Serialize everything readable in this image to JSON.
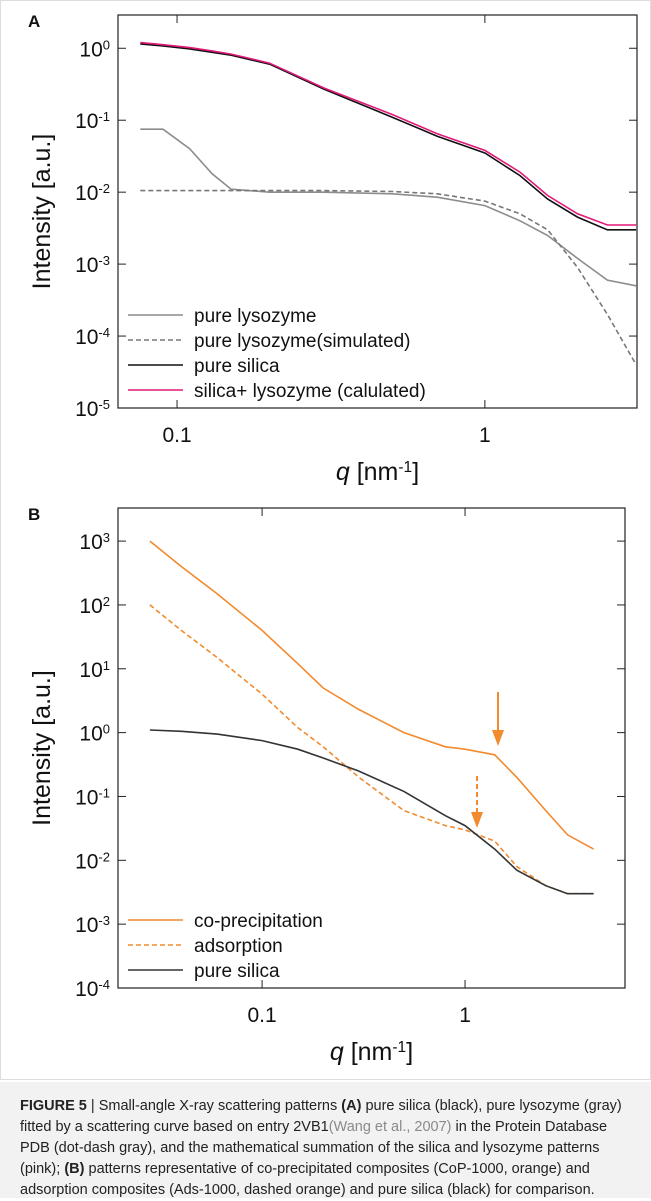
{
  "chart_data": [
    {
      "type": "line",
      "panel_label": "A",
      "x_label": "q [nm^-1]",
      "y_label": "Intensity [a.u.]",
      "log_x": true,
      "log_y": true,
      "xlim": [
        0.0643,
        3.12
      ],
      "ylim": [
        1e-05,
        2.9
      ],
      "xticks": [
        0.1,
        1
      ],
      "yticks": [
        {
          "value": 1e-05,
          "label": "10^-5"
        },
        {
          "value": 0.0001,
          "label": "10^-4"
        },
        {
          "value": 0.001,
          "label": "10^-3"
        },
        {
          "value": 0.01,
          "label": "10^-2"
        },
        {
          "value": 0.1,
          "label": "10^-1"
        },
        {
          "value": 1,
          "label": "10^0"
        }
      ],
      "legend": "lower left",
      "x": [
        0.076,
        0.09,
        0.11,
        0.13,
        0.15,
        0.2,
        0.3,
        0.5,
        0.7,
        1,
        1.3,
        1.6,
        2,
        2.5,
        3.1
      ],
      "series": [
        {
          "name": "pure lysozyme",
          "color": "#8c8c8c",
          "dash": "solid",
          "values": [
            0.075,
            0.075,
            0.04,
            0.018,
            0.011,
            0.01,
            0.01,
            0.0095,
            0.0085,
            0.0065,
            0.004,
            0.0025,
            0.0012,
            0.0006,
            0.0005
          ]
        },
        {
          "name": "pure lysozyme(simulated)",
          "color": "#777777",
          "dash": "dashed",
          "values": [
            0.0105,
            0.0105,
            0.0105,
            0.0105,
            0.0105,
            0.0105,
            0.0105,
            0.0102,
            0.0095,
            0.0075,
            0.005,
            0.003,
            0.0009,
            0.0002,
            4e-05
          ]
        },
        {
          "name": "pure silica",
          "color": "#111111",
          "dash": "solid",
          "values": [
            1.15,
            1.08,
            0.98,
            0.88,
            0.8,
            0.6,
            0.27,
            0.11,
            0.06,
            0.035,
            0.017,
            0.008,
            0.0045,
            0.003,
            0.003
          ]
        },
        {
          "name": "silica+ lysozyme (calulated)",
          "color": "#e0197a",
          "dash": "solid",
          "values": [
            1.2,
            1.12,
            1.02,
            0.92,
            0.83,
            0.62,
            0.28,
            0.12,
            0.065,
            0.038,
            0.019,
            0.009,
            0.005,
            0.0035,
            0.0035
          ]
        }
      ]
    },
    {
      "type": "line",
      "panel_label": "B",
      "x_label": "q [nm^-1]",
      "y_label": "Intensity [a.u.]",
      "log_x": true,
      "log_y": true,
      "xlim": [
        0.0195,
        6.14
      ],
      "ylim": [
        0.0001,
        3300
      ],
      "xticks": [
        0.1,
        1
      ],
      "yticks": [
        {
          "value": 0.0001,
          "label": "10^-4"
        },
        {
          "value": 0.001,
          "label": "10^-3"
        },
        {
          "value": 0.01,
          "label": "10^-2"
        },
        {
          "value": 0.1,
          "label": "10^-1"
        },
        {
          "value": 1,
          "label": "10^0"
        },
        {
          "value": 10,
          "label": "10^1"
        },
        {
          "value": 100,
          "label": "10^2"
        },
        {
          "value": 1000,
          "label": "10^3"
        }
      ],
      "legend": "lower left",
      "x": [
        0.028,
        0.04,
        0.06,
        0.1,
        0.15,
        0.2,
        0.3,
        0.5,
        0.8,
        1,
        1.4,
        1.8,
        2.5,
        3.2,
        4.3
      ],
      "series": [
        {
          "name": "co-precipitation",
          "color": "#f28a2e",
          "dash": "solid",
          "values": [
            1000,
            400,
            150,
            40,
            12,
            5,
            2.3,
            1,
            0.6,
            0.55,
            0.45,
            0.2,
            0.06,
            0.025,
            0.015
          ]
        },
        {
          "name": "adsorption",
          "color": "#f28a2e",
          "dash": "dashed",
          "values": [
            100,
            40,
            15,
            4,
            1.2,
            0.6,
            0.2,
            0.06,
            0.035,
            0.03,
            0.02,
            0.008,
            0.004,
            0.003,
            0.003
          ]
        },
        {
          "name": "pure silica",
          "color": "#333333",
          "dash": "solid",
          "values": [
            1.1,
            1.05,
            0.95,
            0.75,
            0.55,
            0.4,
            0.25,
            0.12,
            0.05,
            0.035,
            0.015,
            0.007,
            0.004,
            0.003,
            0.003
          ]
        }
      ]
    }
  ],
  "caption": {
    "figure_label": "FIGURE 5",
    "text_1": "| Small-angle X-ray scattering patterns",
    "label_a": "(A)",
    "text_2": "pure silica (black), pure lysozyme (gray) fitted by a scattering curve based on entry 2VB1",
    "citation": "(Wang et al., 2007)",
    "text_3": "in the Protein Database PDB (dot-dash gray), and the mathematical summation of the silica and lysozyme patterns (pink);",
    "label_b": "(B)",
    "text_4": "patterns representative of co-precipitated composites (CoP-1000, orange) and adsorption composites (Ads-1000, dashed orange) and pure silica (black) for comparison."
  }
}
